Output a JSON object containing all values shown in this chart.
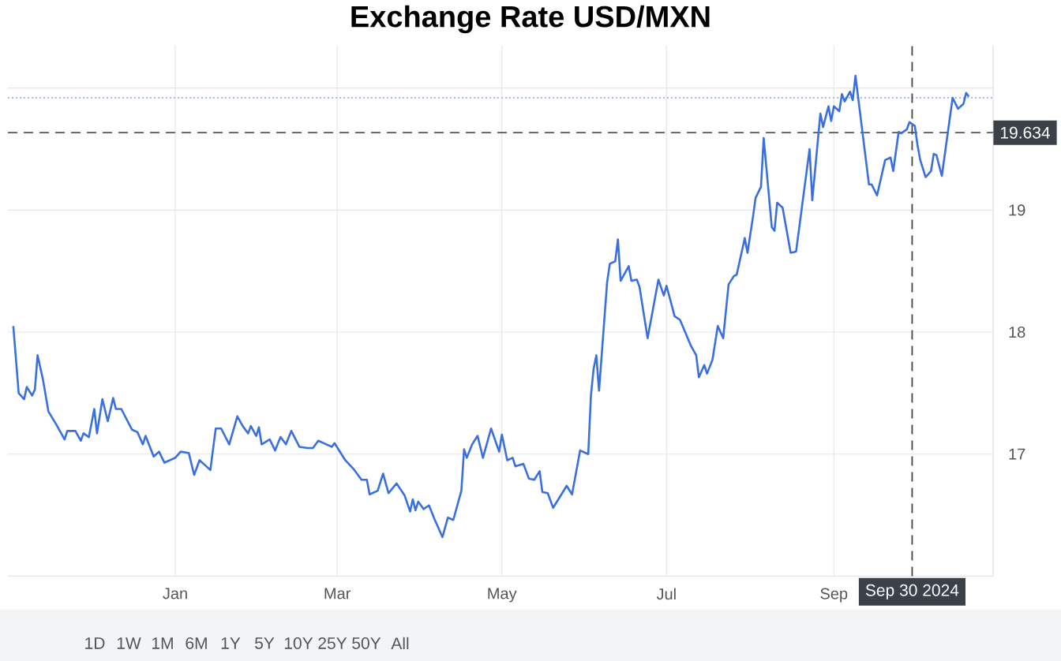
{
  "chart_data": {
    "type": "line",
    "title": "Exchange Rate USD/MXN",
    "x": [
      "2023-11-02",
      "2023-11-04",
      "2023-11-06",
      "2023-11-07",
      "2023-11-09",
      "2023-11-10",
      "2023-11-11",
      "2023-11-13",
      "2023-11-15",
      "2023-11-18",
      "2023-11-21",
      "2023-11-22",
      "2023-11-25",
      "2023-11-27",
      "2023-11-28",
      "2023-11-30",
      "2023-12-02",
      "2023-12-03",
      "2023-12-05",
      "2023-12-07",
      "2023-12-09",
      "2023-12-10",
      "2023-12-12",
      "2023-12-16",
      "2023-12-18",
      "2023-12-20",
      "2023-12-21",
      "2023-12-24",
      "2023-12-26",
      "2023-12-28",
      "2024-01-01",
      "2024-01-03",
      "2024-01-06",
      "2024-01-08",
      "2024-01-10",
      "2024-01-14",
      "2024-01-16",
      "2024-01-18",
      "2024-01-21",
      "2024-01-24",
      "2024-01-26",
      "2024-01-28",
      "2024-01-29",
      "2024-01-31",
      "2024-02-01",
      "2024-02-02",
      "2024-02-05",
      "2024-02-07",
      "2024-02-09",
      "2024-02-11",
      "2024-02-13",
      "2024-02-16",
      "2024-02-19",
      "2024-02-21",
      "2024-02-23",
      "2024-02-26",
      "2024-02-28",
      "2024-02-29",
      "2024-03-04",
      "2024-03-07",
      "2024-03-10",
      "2024-03-12",
      "2024-03-13",
      "2024-03-16",
      "2024-03-18",
      "2024-03-20",
      "2024-03-23",
      "2024-03-26",
      "2024-03-28",
      "2024-03-29",
      "2024-03-30",
      "2024-03-31",
      "2024-04-02",
      "2024-04-04",
      "2024-04-06",
      "2024-04-09",
      "2024-04-11",
      "2024-04-13",
      "2024-04-16",
      "2024-04-17",
      "2024-04-18",
      "2024-04-20",
      "2024-04-22",
      "2024-04-24",
      "2024-04-27",
      "2024-04-30",
      "2024-05-01",
      "2024-05-03",
      "2024-05-05",
      "2024-05-06",
      "2024-05-09",
      "2024-05-11",
      "2024-05-13",
      "2024-05-15",
      "2024-05-16",
      "2024-05-18",
      "2024-05-20",
      "2024-05-25",
      "2024-05-27",
      "2024-05-30",
      "2024-06-02",
      "2024-06-03",
      "2024-06-04",
      "2024-06-05",
      "2024-06-06",
      "2024-06-09",
      "2024-06-10",
      "2024-06-12",
      "2024-06-13",
      "2024-06-14",
      "2024-06-17",
      "2024-06-18",
      "2024-06-20",
      "2024-06-21",
      "2024-06-24",
      "2024-06-28",
      "2024-06-30",
      "2024-07-01",
      "2024-07-04",
      "2024-07-06",
      "2024-07-10",
      "2024-07-12",
      "2024-07-13",
      "2024-07-15",
      "2024-07-16",
      "2024-07-18",
      "2024-07-20",
      "2024-07-22",
      "2024-07-24",
      "2024-07-26",
      "2024-07-27",
      "2024-07-30",
      "2024-07-31",
      "2024-08-02",
      "2024-08-03",
      "2024-08-05",
      "2024-08-06",
      "2024-08-09",
      "2024-08-10",
      "2024-08-11",
      "2024-08-13",
      "2024-08-16",
      "2024-08-18",
      "2024-08-23",
      "2024-08-24",
      "2024-08-27",
      "2024-08-28",
      "2024-08-30",
      "2024-08-31",
      "2024-09-01",
      "2024-09-03",
      "2024-09-04",
      "2024-09-05",
      "2024-09-07",
      "2024-09-08",
      "2024-09-09",
      "2024-09-14",
      "2024-09-15",
      "2024-09-17",
      "2024-09-20",
      "2024-09-22",
      "2024-09-23",
      "2024-09-25",
      "2024-09-26",
      "2024-09-28",
      "2024-09-29",
      "2024-10-01",
      "2024-10-02",
      "2024-10-03",
      "2024-10-05",
      "2024-10-07",
      "2024-10-08",
      "2024-10-09",
      "2024-10-11",
      "2024-10-15",
      "2024-10-17",
      "2024-10-19",
      "2024-10-20",
      "2024-10-21"
    ],
    "values": [
      18.05,
      17.5,
      17.45,
      17.55,
      17.48,
      17.53,
      17.81,
      17.61,
      17.35,
      17.24,
      17.12,
      17.19,
      17.19,
      17.11,
      17.17,
      17.14,
      17.37,
      17.17,
      17.45,
      17.27,
      17.46,
      17.37,
      17.37,
      17.2,
      17.18,
      17.08,
      17.15,
      16.98,
      17.02,
      16.93,
      16.97,
      17.02,
      17.01,
      16.83,
      16.95,
      16.87,
      17.21,
      17.21,
      17.08,
      17.31,
      17.23,
      17.17,
      17.23,
      17.15,
      17.22,
      17.08,
      17.12,
      17.03,
      17.14,
      17.08,
      17.19,
      17.06,
      17.05,
      17.05,
      17.11,
      17.08,
      17.06,
      17.09,
      16.95,
      16.88,
      16.79,
      16.79,
      16.67,
      16.7,
      16.84,
      16.68,
      16.76,
      16.66,
      16.53,
      16.63,
      16.54,
      16.61,
      16.55,
      16.58,
      16.47,
      16.32,
      16.48,
      16.46,
      16.7,
      17.04,
      16.97,
      17.08,
      17.15,
      16.97,
      17.21,
      17.02,
      17.16,
      16.95,
      16.97,
      16.9,
      16.92,
      16.8,
      16.79,
      16.86,
      16.69,
      16.68,
      16.56,
      16.74,
      16.67,
      17.03,
      17.0,
      17.48,
      17.7,
      17.81,
      17.52,
      18.41,
      18.56,
      18.58,
      18.76,
      18.42,
      18.54,
      18.42,
      18.43,
      18.37,
      17.95,
      18.43,
      18.3,
      18.38,
      18.13,
      18.1,
      17.89,
      17.81,
      17.63,
      17.73,
      17.66,
      17.77,
      18.05,
      17.95,
      18.39,
      18.46,
      18.47,
      18.77,
      18.65,
      18.94,
      19.1,
      19.19,
      19.59,
      18.86,
      18.83,
      19.06,
      19.02,
      18.65,
      18.66,
      19.5,
      19.08,
      19.79,
      19.68,
      19.85,
      19.73,
      19.85,
      19.81,
      19.95,
      19.89,
      19.97,
      19.9,
      20.1,
      19.21,
      19.21,
      19.12,
      19.41,
      19.43,
      19.32,
      19.64,
      19.63,
      19.66,
      19.72,
      19.69,
      19.53,
      19.41,
      19.27,
      19.32,
      19.46,
      19.45,
      19.28,
      19.92,
      19.83,
      19.87,
      19.96,
      19.93
    ],
    "color": "#3a6fe0",
    "xlim": [
      "2023-10-31",
      "2024-10-30"
    ],
    "xticks": [
      {
        "value": "2024-01-01",
        "label": "Jan"
      },
      {
        "value": "2024-03-01",
        "label": "Mar"
      },
      {
        "value": "2024-05-01",
        "label": "May"
      },
      {
        "value": "2024-07-01",
        "label": "Jul"
      },
      {
        "value": "2024-09-01",
        "label": "Sep"
      }
    ],
    "ylim": [
      16.0,
      20.35
    ],
    "yticks": [
      17,
      18,
      19,
      {
        "value": 20,
        "label": null
      }
    ],
    "grid": true,
    "ref_lines": [
      {
        "axis": "y",
        "value": 19.634,
        "label": "19.634",
        "color": "#555555",
        "line_style": "dashed"
      },
      {
        "axis": "y",
        "value": 19.92,
        "label": null,
        "color": "#9db0ef",
        "line_style": "dotted"
      },
      {
        "axis": "x",
        "value": "2024-09-30",
        "label": "Sep 30 2024",
        "color": "#444444",
        "line_style": "dashed"
      }
    ],
    "annotations": [
      "1D",
      "1W",
      "1M",
      "6M",
      "1Y",
      "5Y",
      "10Y",
      "25Y",
      "50Y",
      "All"
    ]
  }
}
